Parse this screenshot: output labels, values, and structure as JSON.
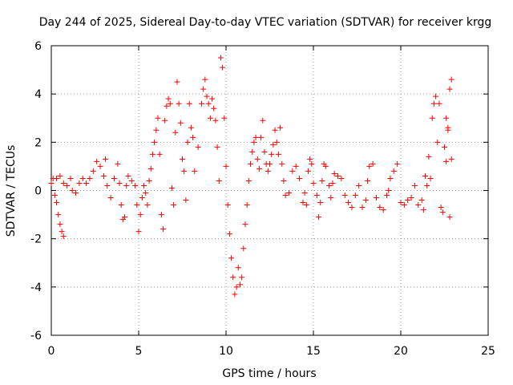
{
  "chart_data": {
    "type": "scatter",
    "title": "Day 244 of 2025, Sidereal Day-to-day VTEC variation (SDTVAR) for receiver krgg",
    "xlabel": "GPS time / hours",
    "ylabel": "SDTVAR / TECUs",
    "xlim": [
      0,
      25
    ],
    "ylim": [
      -6,
      6
    ],
    "xticks": [
      0,
      5,
      10,
      15,
      20,
      25
    ],
    "yticks": [
      -6,
      -4,
      -2,
      0,
      2,
      4,
      6
    ],
    "grid": true,
    "marker": "+",
    "series": [
      {
        "name": "SDTVAR",
        "color": "#ff0000",
        "points": [
          [
            0.0,
            0.3
          ],
          [
            0.1,
            0.5
          ],
          [
            0.2,
            -0.2
          ],
          [
            0.3,
            -0.5
          ],
          [
            0.4,
            -1.0
          ],
          [
            0.5,
            -1.4
          ],
          [
            0.6,
            -1.7
          ],
          [
            0.7,
            -1.9
          ],
          [
            0.3,
            0.5
          ],
          [
            0.5,
            0.6
          ],
          [
            0.7,
            0.3
          ],
          [
            0.9,
            0.2
          ],
          [
            1.1,
            0.5
          ],
          [
            1.2,
            0.0
          ],
          [
            1.4,
            -0.1
          ],
          [
            1.6,
            0.3
          ],
          [
            1.8,
            0.5
          ],
          [
            2.0,
            0.3
          ],
          [
            2.2,
            0.5
          ],
          [
            2.4,
            0.8
          ],
          [
            2.6,
            1.2
          ],
          [
            2.8,
            1.0
          ],
          [
            3.0,
            0.6
          ],
          [
            3.1,
            1.3
          ],
          [
            3.2,
            0.2
          ],
          [
            3.4,
            -0.3
          ],
          [
            3.6,
            0.5
          ],
          [
            3.8,
            1.1
          ],
          [
            3.9,
            0.3
          ],
          [
            4.0,
            -0.6
          ],
          [
            4.1,
            -1.2
          ],
          [
            4.2,
            -1.1
          ],
          [
            4.3,
            0.2
          ],
          [
            4.4,
            0.6
          ],
          [
            4.6,
            0.4
          ],
          [
            4.8,
            0.2
          ],
          [
            4.9,
            -0.6
          ],
          [
            5.0,
            -1.7
          ],
          [
            5.1,
            -1.0
          ],
          [
            5.2,
            -0.3
          ],
          [
            5.3,
            0.2
          ],
          [
            5.4,
            -0.1
          ],
          [
            5.5,
            -0.6
          ],
          [
            5.6,
            0.4
          ],
          [
            5.7,
            0.9
          ],
          [
            5.8,
            1.5
          ],
          [
            5.9,
            2.0
          ],
          [
            6.0,
            2.5
          ],
          [
            6.1,
            3.0
          ],
          [
            6.2,
            1.5
          ],
          [
            6.3,
            -1.0
          ],
          [
            6.4,
            -1.6
          ],
          [
            6.5,
            2.9
          ],
          [
            6.6,
            3.5
          ],
          [
            6.7,
            3.8
          ],
          [
            6.8,
            3.6
          ],
          [
            6.9,
            0.1
          ],
          [
            7.0,
            -0.6
          ],
          [
            7.1,
            2.4
          ],
          [
            7.2,
            4.5
          ],
          [
            7.3,
            3.6
          ],
          [
            7.4,
            2.8
          ],
          [
            7.5,
            1.3
          ],
          [
            7.6,
            0.8
          ],
          [
            7.7,
            -0.4
          ],
          [
            7.8,
            2.0
          ],
          [
            7.9,
            3.6
          ],
          [
            8.0,
            2.6
          ],
          [
            8.1,
            2.2
          ],
          [
            8.2,
            0.8
          ],
          [
            8.4,
            1.8
          ],
          [
            8.6,
            3.6
          ],
          [
            8.7,
            4.2
          ],
          [
            8.8,
            4.6
          ],
          [
            8.9,
            3.9
          ],
          [
            9.0,
            3.6
          ],
          [
            9.1,
            3.0
          ],
          [
            9.2,
            3.8
          ],
          [
            9.3,
            3.4
          ],
          [
            9.4,
            2.9
          ],
          [
            9.5,
            1.8
          ],
          [
            9.6,
            0.4
          ],
          [
            9.7,
            5.5
          ],
          [
            9.8,
            5.1
          ],
          [
            9.9,
            3.0
          ],
          [
            10.0,
            1.0
          ],
          [
            10.1,
            -0.6
          ],
          [
            10.2,
            -1.8
          ],
          [
            10.3,
            -2.8
          ],
          [
            10.4,
            -3.6
          ],
          [
            10.5,
            -4.3
          ],
          [
            10.6,
            -4.0
          ],
          [
            10.7,
            -3.2
          ],
          [
            10.8,
            -3.9
          ],
          [
            10.9,
            -3.6
          ],
          [
            11.0,
            -2.4
          ],
          [
            11.1,
            -1.4
          ],
          [
            11.2,
            -0.6
          ],
          [
            11.3,
            0.4
          ],
          [
            11.4,
            1.1
          ],
          [
            11.5,
            1.6
          ],
          [
            11.6,
            2.0
          ],
          [
            11.7,
            2.2
          ],
          [
            11.8,
            1.3
          ],
          [
            11.9,
            0.9
          ],
          [
            12.0,
            2.2
          ],
          [
            12.1,
            2.9
          ],
          [
            12.2,
            1.6
          ],
          [
            12.3,
            1.1
          ],
          [
            12.4,
            0.8
          ],
          [
            12.5,
            1.1
          ],
          [
            12.6,
            1.5
          ],
          [
            12.7,
            1.9
          ],
          [
            12.8,
            2.5
          ],
          [
            12.9,
            2.0
          ],
          [
            13.0,
            1.5
          ],
          [
            13.1,
            2.6
          ],
          [
            13.2,
            1.1
          ],
          [
            13.3,
            0.4
          ],
          [
            13.4,
            -0.2
          ],
          [
            13.6,
            -0.1
          ],
          [
            13.8,
            0.8
          ],
          [
            14.0,
            1.0
          ],
          [
            14.2,
            0.5
          ],
          [
            14.4,
            -0.5
          ],
          [
            14.5,
            -0.1
          ],
          [
            14.6,
            -0.6
          ],
          [
            14.7,
            0.8
          ],
          [
            14.8,
            1.3
          ],
          [
            14.9,
            1.1
          ],
          [
            15.0,
            0.3
          ],
          [
            15.2,
            -0.2
          ],
          [
            15.3,
            -1.1
          ],
          [
            15.4,
            -0.5
          ],
          [
            15.5,
            0.4
          ],
          [
            15.6,
            1.1
          ],
          [
            15.7,
            1.0
          ],
          [
            15.9,
            0.2
          ],
          [
            16.0,
            -0.3
          ],
          [
            16.1,
            0.3
          ],
          [
            16.2,
            0.7
          ],
          [
            16.4,
            0.6
          ],
          [
            16.6,
            0.5
          ],
          [
            16.8,
            -0.2
          ],
          [
            17.0,
            -0.5
          ],
          [
            17.2,
            -0.7
          ],
          [
            17.4,
            -0.2
          ],
          [
            17.6,
            0.2
          ],
          [
            17.8,
            -0.7
          ],
          [
            18.0,
            -0.4
          ],
          [
            18.1,
            0.4
          ],
          [
            18.2,
            1.0
          ],
          [
            18.4,
            1.1
          ],
          [
            18.6,
            -0.3
          ],
          [
            18.8,
            -0.7
          ],
          [
            19.0,
            -0.8
          ],
          [
            19.2,
            -0.2
          ],
          [
            19.3,
            0.0
          ],
          [
            19.4,
            0.5
          ],
          [
            19.6,
            0.8
          ],
          [
            19.8,
            1.1
          ],
          [
            20.0,
            -0.5
          ],
          [
            20.2,
            -0.6
          ],
          [
            20.4,
            -0.4
          ],
          [
            20.6,
            -0.3
          ],
          [
            20.8,
            0.2
          ],
          [
            21.0,
            -0.6
          ],
          [
            21.2,
            -0.4
          ],
          [
            21.3,
            -0.8
          ],
          [
            21.4,
            0.6
          ],
          [
            21.5,
            0.2
          ],
          [
            21.6,
            1.4
          ],
          [
            21.7,
            0.5
          ],
          [
            21.8,
            3.0
          ],
          [
            21.9,
            3.6
          ],
          [
            22.0,
            3.9
          ],
          [
            22.1,
            2.0
          ],
          [
            22.2,
            3.6
          ],
          [
            22.3,
            -0.7
          ],
          [
            22.4,
            -0.9
          ],
          [
            22.5,
            1.8
          ],
          [
            22.6,
            1.2
          ],
          [
            22.7,
            2.5
          ],
          [
            22.8,
            4.2
          ],
          [
            22.9,
            4.6
          ],
          [
            22.9,
            1.3
          ],
          [
            22.8,
            -1.1
          ],
          [
            22.7,
            2.6
          ],
          [
            22.6,
            3.0
          ]
        ]
      }
    ]
  }
}
